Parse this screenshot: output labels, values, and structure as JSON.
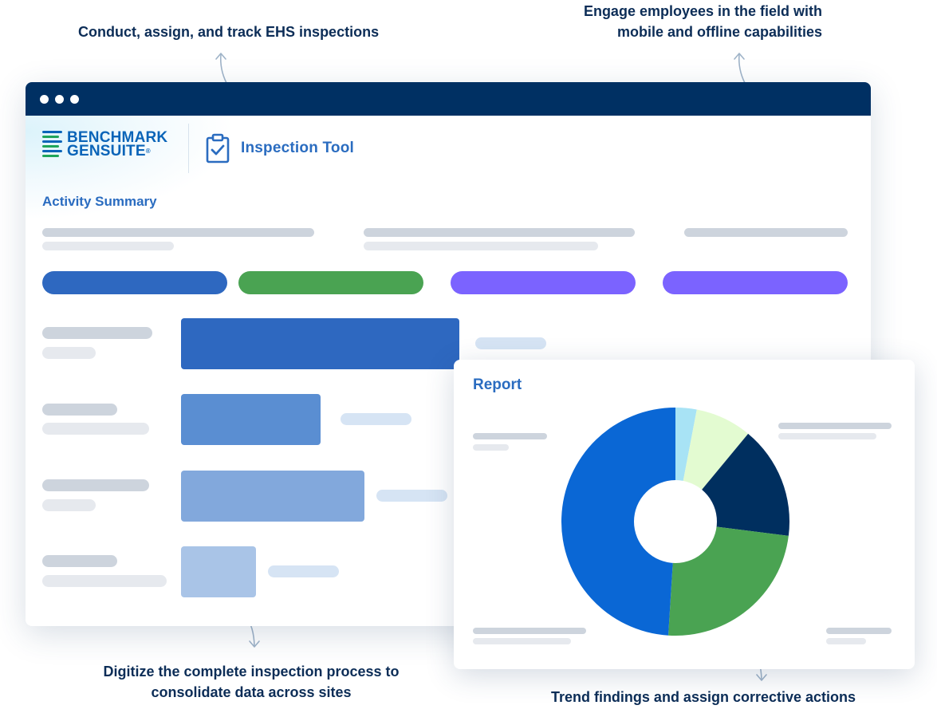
{
  "captions": {
    "top_left": "Conduct, assign, and track EHS inspections",
    "top_right": "Engage employees in the field with mobile and offline capabilities",
    "bottom_left": "Digitize the complete inspection process to consolidate data across sites",
    "bottom_right": "Trend findings and assign corrective actions"
  },
  "app": {
    "brand_line1": "BENCHMARK",
    "brand_line2": "GENSUITE",
    "brand_mark": "®",
    "tool_name": "Inspection Tool",
    "tool_icon": "clipboard-check-icon",
    "section_title": "Activity Summary"
  },
  "activity": {
    "pill_colors": [
      "#2e68c0",
      "#4aa352",
      "#7b63ff",
      "#7b63ff"
    ],
    "bar_values": [
      1.0,
      0.5,
      0.66,
      0.27
    ],
    "bar_colors": [
      "#2e68c0",
      "#5a8ed2",
      "#82a8dc",
      "#a9c4e7"
    ]
  },
  "report": {
    "title": "Report",
    "chart_data": {
      "type": "pie",
      "style": "donut",
      "values": [
        3,
        8,
        16,
        24,
        49
      ],
      "colors": [
        "#a8e3f5",
        "#e3fbd1",
        "#002f5f",
        "#4aa352",
        "#0a67d5"
      ]
    }
  },
  "colors": {
    "titlebar": "#003063",
    "accent": "#2a6cc0",
    "caption": "#0c2d57"
  }
}
